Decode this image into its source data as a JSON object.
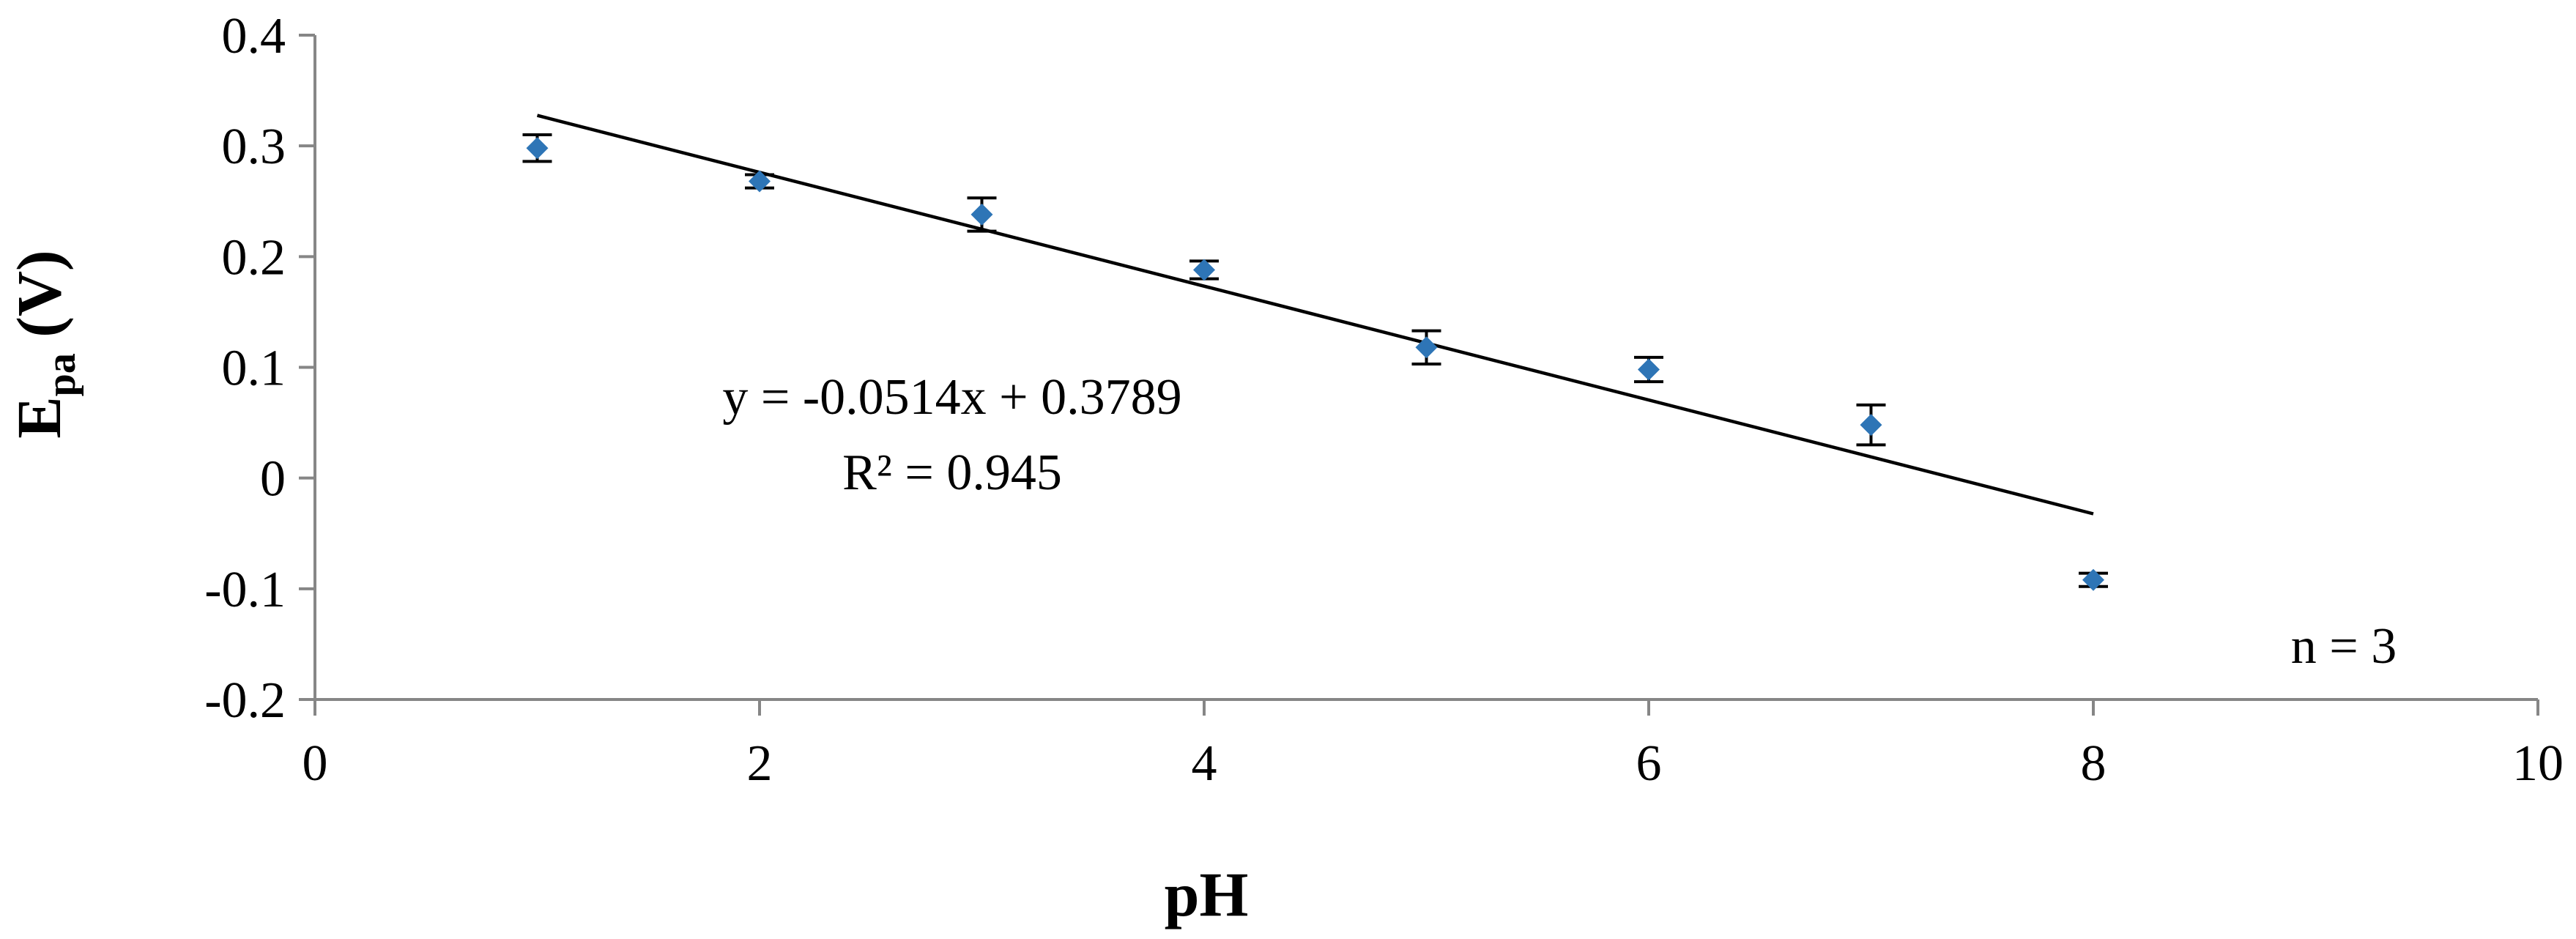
{
  "chart_data": {
    "type": "scatter",
    "xlabel": "pH",
    "ylabel_main": "E",
    "ylabel_sub": "pa",
    "ylabel_unit": "(V)",
    "xlim": [
      0,
      10
    ],
    "ylim": [
      -0.2,
      0.4
    ],
    "x_ticks": [
      0,
      2,
      4,
      6,
      8,
      10
    ],
    "x_tick_labels": [
      "0",
      "2",
      "4",
      "6",
      "8",
      "10"
    ],
    "y_ticks": [
      -0.2,
      -0.1,
      0,
      0.1,
      0.2,
      0.3,
      0.4
    ],
    "y_tick_labels": [
      "-0.2",
      "-0.1",
      "0",
      "0.1",
      "0.2",
      "0.3",
      "0.4"
    ],
    "grid": false,
    "legend": "none",
    "series": [
      {
        "x": [
          1,
          2,
          3,
          4,
          5,
          6,
          7,
          8
        ],
        "y": [
          0.298,
          0.268,
          0.238,
          0.188,
          0.118,
          0.098,
          0.048,
          -0.092
        ],
        "error": [
          0.012,
          0.006,
          0.015,
          0.008,
          0.015,
          0.011,
          0.018,
          0.006
        ],
        "color": "#2E75B6",
        "marker": "diamond"
      }
    ],
    "trendline": {
      "slope": -0.0514,
      "intercept": 0.3789,
      "x_range": [
        1,
        8
      ],
      "color": "#000000"
    },
    "annotations": {
      "equation": "y = -0.0514x + 0.3789",
      "r_squared": "R² = 0.945",
      "n": "n = 3"
    }
  }
}
